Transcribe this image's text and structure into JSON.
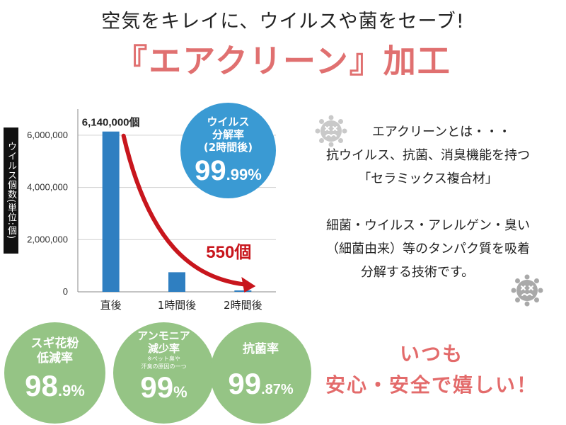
{
  "tagline": "空気をキレイに、ウイルスや菌をセーブ!",
  "title": "『エアクリーン』加工",
  "chart_data": {
    "type": "bar",
    "categories": [
      "直後",
      "1時間後",
      "2時間後"
    ],
    "values": [
      6140000,
      750000,
      550
    ],
    "ylabel": "ウイルス個数(単位:個)",
    "ylim": [
      0,
      7000000
    ],
    "yticks": [
      "0",
      "2,000,000",
      "4,000,000",
      "6,000,000"
    ],
    "ytick_values": [
      0,
      2000000,
      4000000,
      6000000
    ],
    "annotations": {
      "first": "6,140,000個",
      "last": "550個"
    },
    "grid": true,
    "bar_color": "#2f7fc1",
    "arrow_color": "#c8161d"
  },
  "blue_stat": {
    "line1": "ウイルス",
    "line2": "分解率",
    "line3": "(2時間後)",
    "value_int": "99",
    "value_dec": ".99%",
    "color": "#3a9ad3"
  },
  "green_stats": [
    {
      "label1": "スギ花粉",
      "label2": "低減率",
      "value_int": "98",
      "value_dec": ".9%"
    },
    {
      "label1": "アンモニア",
      "label2": "減少率",
      "note1": "※ペット臭や",
      "note2": "汗臭の原因の一つ",
      "value_int": "99",
      "value_dec": "%"
    },
    {
      "label1": "抗菌率",
      "value_int": "99",
      "value_dec": ".87%"
    }
  ],
  "green_color": "#95c485",
  "description": {
    "line1": "エアクリーンとは・・・",
    "line2": "抗ウイルス、抗菌、消臭機能を持つ",
    "line3": "「セラミックス複合材」",
    "line4": "細菌・ウイルス・アレルゲン・臭い",
    "line5": "（細菌由来）等のタンパク質を吸着",
    "line6": "分解する技術です。"
  },
  "closing": {
    "line1": "いつも",
    "line2": "安心・安全で嬉しい！",
    "color": "#e36b6b"
  },
  "icons": [
    "virus-icon",
    "virus-icon"
  ]
}
